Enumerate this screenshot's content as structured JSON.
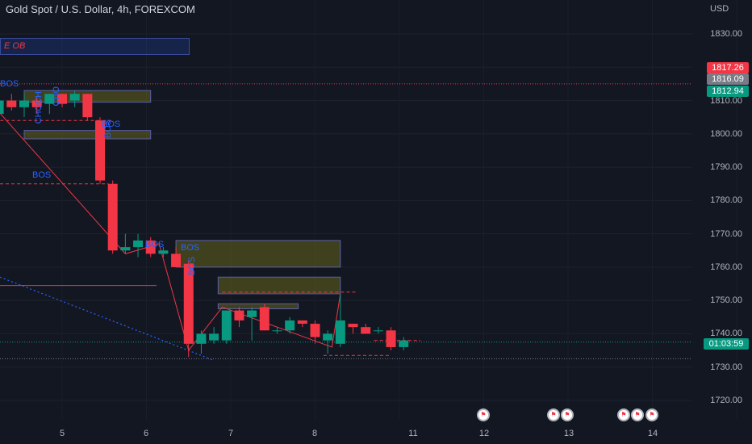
{
  "header": {
    "title": "Gold Spot / U.S. Dollar, 4h, FOREXCOM",
    "currency": "USD"
  },
  "price_labels": {
    "high": "1817.26",
    "mid": "1816.09",
    "low": "1812.94",
    "countdown": "01:03:59"
  },
  "annotations": {
    "ob_label": "E OB",
    "bos_main": "BOS",
    "bos_a": "BOS",
    "bos_b": "BOS",
    "bos_c": "BOS",
    "bos_left_top": "BOS",
    "bos_vertical_1": "BOS",
    "bos_vertical_2": "BOS",
    "choch": "CHOCH",
    "choch_b": "CHO",
    "bos_right_a": "BOS",
    "bos_right_b": "BOS"
  },
  "chart_data": {
    "type": "candlestick",
    "title": "Gold Spot / U.S. Dollar, 4h, FOREXCOM",
    "ylabel": "USD",
    "ylim": [
      1714,
      1841
    ],
    "y_ticks": [
      "1830.00",
      "1820.00",
      "1810.00",
      "1800.00",
      "1790.00",
      "1780.00",
      "1770.00",
      "1760.00",
      "1750.00",
      "1740.00",
      "1730.00",
      "1720.00"
    ],
    "x_ticks": [
      "5",
      "6",
      "7",
      "8",
      "11",
      "12",
      "13",
      "14"
    ],
    "colors": {
      "up": "#089981",
      "down": "#f23645",
      "zone": "#6b6b1a",
      "line": "#f23645",
      "dots": "#2962ff"
    },
    "candles": [
      {
        "t": "4.00",
        "o": 1810,
        "h": 1815,
        "l": 1808,
        "c": 1813
      },
      {
        "t": "4.10",
        "o": 1811,
        "h": 1813,
        "l": 1805,
        "c": 1806
      },
      {
        "t": "4.25",
        "o": 1806,
        "h": 1812,
        "l": 1804,
        "c": 1810
      },
      {
        "t": "4.40",
        "o": 1810,
        "h": 1812,
        "l": 1807,
        "c": 1808
      },
      {
        "t": "4.55",
        "o": 1808,
        "h": 1812,
        "l": 1805,
        "c": 1810
      },
      {
        "t": "4.70",
        "o": 1810,
        "h": 1811,
        "l": 1806,
        "c": 1808
      },
      {
        "t": "4.85",
        "o": 1809,
        "h": 1812,
        "l": 1806,
        "c": 1812
      },
      {
        "t": "5.00",
        "o": 1812,
        "h": 1812,
        "l": 1808,
        "c": 1809
      },
      {
        "t": "5.15",
        "o": 1810,
        "h": 1813,
        "l": 1808,
        "c": 1812
      },
      {
        "t": "5.30",
        "o": 1812,
        "h": 1812,
        "l": 1804,
        "c": 1805
      },
      {
        "t": "5.45",
        "o": 1804,
        "h": 1805,
        "l": 1785,
        "c": 1786
      },
      {
        "t": "5.60",
        "o": 1785,
        "h": 1786,
        "l": 1764,
        "c": 1765
      },
      {
        "t": "5.75",
        "o": 1765,
        "h": 1770,
        "l": 1764,
        "c": 1766
      },
      {
        "t": "5.90",
        "o": 1766,
        "h": 1770,
        "l": 1763,
        "c": 1768
      },
      {
        "t": "6.05",
        "o": 1768,
        "h": 1769,
        "l": 1763,
        "c": 1764
      },
      {
        "t": "6.20",
        "o": 1764,
        "h": 1766,
        "l": 1763,
        "c": 1765
      },
      {
        "t": "6.35",
        "o": 1764,
        "h": 1766,
        "l": 1760,
        "c": 1760
      },
      {
        "t": "6.50",
        "o": 1761,
        "h": 1762,
        "l": 1733,
        "c": 1737
      },
      {
        "t": "6.65",
        "o": 1737,
        "h": 1741,
        "l": 1734,
        "c": 1740
      },
      {
        "t": "6.80",
        "o": 1738,
        "h": 1742,
        "l": 1737,
        "c": 1740
      },
      {
        "t": "6.95",
        "o": 1738,
        "h": 1747,
        "l": 1737,
        "c": 1747
      },
      {
        "t": "7.10",
        "o": 1747,
        "h": 1748,
        "l": 1742,
        "c": 1744
      },
      {
        "t": "7.25",
        "o": 1745,
        "h": 1748,
        "l": 1738,
        "c": 1747
      },
      {
        "t": "7.40",
        "o": 1748,
        "h": 1749,
        "l": 1741,
        "c": 1741
      },
      {
        "t": "7.55",
        "o": 1741,
        "h": 1742,
        "l": 1740,
        "c": 1741
      },
      {
        "t": "7.70",
        "o": 1741,
        "h": 1745,
        "l": 1740,
        "c": 1744
      },
      {
        "t": "7.85",
        "o": 1744,
        "h": 1744,
        "l": 1742,
        "c": 1743
      },
      {
        "t": "8.00",
        "o": 1743,
        "h": 1744,
        "l": 1737,
        "c": 1739
      },
      {
        "t": "8.15",
        "o": 1738,
        "h": 1741,
        "l": 1734,
        "c": 1740
      },
      {
        "t": "8.30",
        "o": 1737,
        "h": 1752,
        "l": 1736,
        "c": 1744
      },
      {
        "t": "8.45",
        "o": 1743,
        "h": 1743,
        "l": 1740,
        "c": 1742
      },
      {
        "t": "8.60",
        "o": 1742,
        "h": 1743,
        "l": 1740,
        "c": 1740
      },
      {
        "t": "8.75",
        "o": 1741,
        "h": 1742,
        "l": 1740,
        "c": 1741
      },
      {
        "t": "8.90",
        "o": 1741,
        "h": 1742,
        "l": 1735,
        "c": 1736
      },
      {
        "t": "9.05",
        "o": 1736,
        "h": 1739,
        "l": 1735,
        "c": 1738
      }
    ]
  }
}
